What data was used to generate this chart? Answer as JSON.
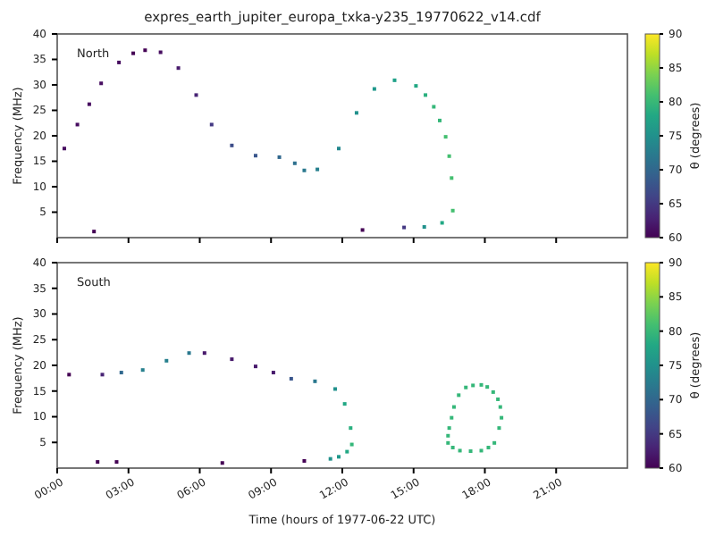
{
  "chart_data": [
    {
      "type": "scatter",
      "title": "expres_earth_jupiter_europa_txka-y235_19770622_v14.cdf",
      "ylabel": "Frequency (MHz)",
      "clabel": "θ (degrees)",
      "annotations": [
        "North"
      ],
      "marker": "square",
      "tick_labels": "y",
      "xlim": [
        0,
        24
      ],
      "xticks": [
        {
          "value": 0,
          "label": null
        },
        {
          "value": 3,
          "label": null
        },
        {
          "value": 6,
          "label": null
        },
        {
          "value": 9,
          "label": null
        },
        {
          "value": 12,
          "label": null
        },
        {
          "value": 15,
          "label": null
        },
        {
          "value": 18,
          "label": null
        },
        {
          "value": 21,
          "label": null
        }
      ],
      "ylim": [
        0,
        40
      ],
      "yticks": [
        5,
        10,
        15,
        20,
        25,
        30,
        35,
        40
      ],
      "clim": [
        60,
        90
      ],
      "cticks": [
        60,
        65,
        70,
        75,
        80,
        85,
        90
      ],
      "x": [
        0.3,
        0.85,
        1.35,
        1.85,
        2.6,
        3.2,
        3.7,
        4.35,
        5.1,
        5.85,
        6.5,
        7.35,
        8.35,
        9.35,
        10,
        10.4,
        10.95,
        11.85,
        12.6,
        13.35,
        14.2,
        15.1,
        15.5,
        15.85,
        16.1,
        16.35,
        16.5,
        16.6,
        16.65,
        16.2,
        15.45,
        14.6,
        12.85,
        1.55
      ],
      "values": [
        17.5,
        22.2,
        26.2,
        30.3,
        34.4,
        36.2,
        36.8,
        36.4,
        33.3,
        28,
        22.2,
        18.1,
        16.1,
        15.8,
        14.6,
        13.2,
        13.4,
        17.5,
        24.5,
        29.2,
        30.9,
        29.8,
        28,
        25.7,
        23,
        19.8,
        16,
        11.7,
        5.3,
        2.9,
        2.1,
        2,
        1.5,
        1.2
      ],
      "cvalues": [
        61,
        61,
        61,
        61,
        61,
        60,
        60,
        61,
        62,
        63,
        65,
        67,
        68,
        70,
        71,
        72,
        73,
        74,
        75,
        76,
        77,
        78,
        79,
        80,
        80,
        81,
        81,
        81,
        81,
        78,
        75,
        65,
        60,
        60
      ]
    },
    {
      "type": "scatter",
      "ylabel": "Frequency (MHz)",
      "xlabel": "Time (hours of 1977-06-22 UTC)",
      "clabel": "θ (degrees)",
      "annotations": [
        "South"
      ],
      "marker": "square",
      "xlim": [
        0,
        24
      ],
      "xticks": [
        {
          "value": 0,
          "label": "00:00"
        },
        {
          "value": 3,
          "label": "03:00"
        },
        {
          "value": 6,
          "label": "06:00"
        },
        {
          "value": 9,
          "label": "09:00"
        },
        {
          "value": 12,
          "label": "12:00"
        },
        {
          "value": 15,
          "label": "15:00"
        },
        {
          "value": 18,
          "label": "18:00"
        },
        {
          "value": 21,
          "label": "21:00"
        }
      ],
      "ylim": [
        0,
        40
      ],
      "yticks": [
        5,
        10,
        15,
        20,
        25,
        30,
        35,
        40
      ],
      "clim": [
        60,
        90
      ],
      "cticks": [
        60,
        65,
        70,
        75,
        80,
        85,
        90
      ],
      "x": [
        0.5,
        1.9,
        2.7,
        3.6,
        4.6,
        5.55,
        6.2,
        7.35,
        8.35,
        9.1,
        9.85,
        10.85,
        11.7,
        12.1,
        12.35,
        12.4,
        12.2,
        11.85,
        11.5,
        10.4,
        6.95,
        2.5,
        1.7,
        17.2,
        17.5,
        17.85,
        18.1,
        18.35,
        18.55,
        18.65,
        18.7,
        18.6,
        18.4,
        18.15,
        17.85,
        17.4,
        16.95,
        16.65,
        16.45,
        16.45,
        16.5,
        16.6,
        16.7,
        16.9
      ],
      "values": [
        18.2,
        18.2,
        18.6,
        19.1,
        20.9,
        22.4,
        22.4,
        21.2,
        19.8,
        18.6,
        17.4,
        16.9,
        15.4,
        12.5,
        7.8,
        4.6,
        3.2,
        2.2,
        1.8,
        1.4,
        1,
        1.2,
        1.2,
        15.7,
        16.1,
        16.2,
        15.8,
        14.8,
        13.4,
        11.9,
        9.8,
        7.8,
        4.9,
        4,
        3.4,
        3.3,
        3.4,
        4,
        4.9,
        6.3,
        7.8,
        9.8,
        11.9,
        14.2
      ],
      "cvalues": [
        60,
        63,
        70,
        73,
        73,
        72,
        62,
        62,
        62,
        62,
        68,
        72,
        75,
        78,
        79,
        80,
        78,
        76,
        75,
        60,
        60,
        60,
        60,
        80,
        80,
        80,
        80,
        80,
        80,
        80,
        80,
        80,
        80,
        80,
        80,
        80,
        80,
        80,
        80,
        80,
        80,
        80,
        80,
        80
      ]
    }
  ]
}
